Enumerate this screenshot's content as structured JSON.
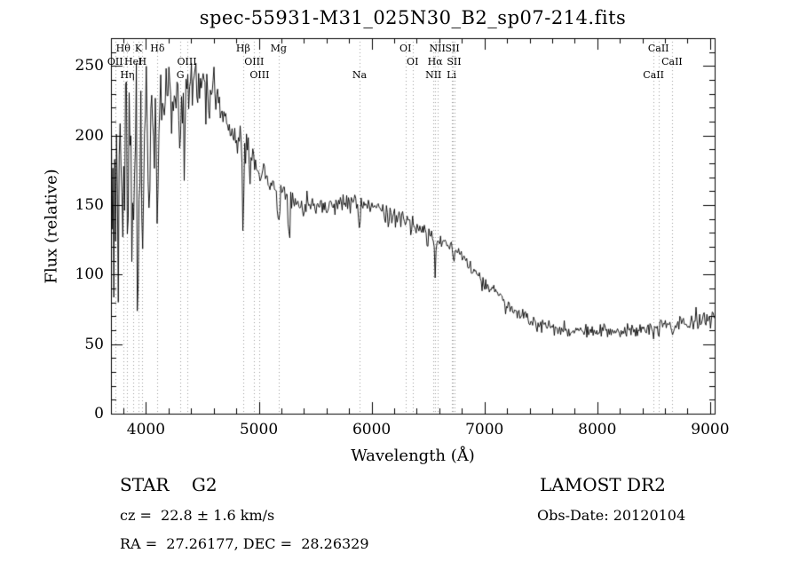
{
  "title": "spec-55931-M31_025N30_B2_sp07-214.fits",
  "footer": {
    "class_label": "STAR    G2",
    "survey": "LAMOST DR2",
    "cz": "cz =  22.8 ± 1.6 km/s",
    "obs_date": "Obs-Date: 20120104",
    "coords": "RA =  27.26177, DEC =  28.26329"
  },
  "chart_data": {
    "type": "line",
    "title": "spec-55931-M31_025N30_B2_sp07-214.fits",
    "xlabel": "Wavelength (Å)",
    "ylabel": "Flux (relative)",
    "xlim": [
      3690,
      9040
    ],
    "ylim": [
      0,
      270
    ],
    "xticks": [
      4000,
      5000,
      6000,
      7000,
      8000,
      9000
    ],
    "yticks": [
      0,
      50,
      100,
      150,
      200,
      250
    ],
    "x_minor_step": 200,
    "y_minor_step": 10,
    "grid": "vertical dotted lines at spectral features only",
    "legend": "none",
    "line_color": "#000000",
    "axis_color": "#000000",
    "grid_color": "#999999",
    "background": "#ffffff",
    "seed": 7,
    "sample_step": 8,
    "clamp": [
      50,
      252
    ],
    "blue_spikes": {
      "max_wavelength": 4150,
      "probability": 0.18,
      "min_depth": 25,
      "max_depth": 120
    },
    "continuum": [
      [
        3690,
        150
      ],
      [
        3710,
        178
      ],
      [
        3730,
        198
      ],
      [
        3760,
        212
      ],
      [
        3790,
        220
      ],
      [
        3820,
        214
      ],
      [
        3850,
        209
      ],
      [
        3880,
        206
      ],
      [
        3910,
        204
      ],
      [
        3935,
        198
      ],
      [
        3970,
        198
      ],
      [
        4000,
        214
      ],
      [
        4040,
        222
      ],
      [
        4080,
        222
      ],
      [
        4120,
        226
      ],
      [
        4160,
        230
      ],
      [
        4200,
        230
      ],
      [
        4250,
        228
      ],
      [
        4300,
        231
      ],
      [
        4350,
        230
      ],
      [
        4400,
        234
      ],
      [
        4450,
        237
      ],
      [
        4500,
        236
      ],
      [
        4550,
        232
      ],
      [
        4600,
        229
      ],
      [
        4650,
        224
      ],
      [
        4700,
        213
      ],
      [
        4750,
        206
      ],
      [
        4800,
        201
      ],
      [
        4850,
        196
      ],
      [
        4900,
        189
      ],
      [
        4950,
        183
      ],
      [
        5000,
        177
      ],
      [
        5050,
        170
      ],
      [
        5100,
        165
      ],
      [
        5160,
        161
      ],
      [
        5220,
        157
      ],
      [
        5280,
        153
      ],
      [
        5350,
        150
      ],
      [
        5450,
        150
      ],
      [
        5550,
        151
      ],
      [
        5650,
        150
      ],
      [
        5750,
        152
      ],
      [
        5850,
        153
      ],
      [
        5950,
        150
      ],
      [
        6050,
        147
      ],
      [
        6150,
        144
      ],
      [
        6250,
        141
      ],
      [
        6350,
        137
      ],
      [
        6450,
        132
      ],
      [
        6550,
        128
      ],
      [
        6650,
        123
      ],
      [
        6750,
        117
      ],
      [
        6850,
        109
      ],
      [
        6950,
        100
      ],
      [
        7050,
        91
      ],
      [
        7150,
        83
      ],
      [
        7250,
        75
      ],
      [
        7350,
        69
      ],
      [
        7450,
        65
      ],
      [
        7550,
        63
      ],
      [
        7650,
        61
      ],
      [
        7750,
        60
      ],
      [
        7850,
        60
      ],
      [
        7950,
        59
      ],
      [
        8050,
        60
      ],
      [
        8150,
        60
      ],
      [
        8250,
        60
      ],
      [
        8350,
        61
      ],
      [
        8450,
        62
      ],
      [
        8550,
        63
      ],
      [
        8650,
        64
      ],
      [
        8750,
        65
      ],
      [
        8850,
        66
      ],
      [
        8950,
        68
      ],
      [
        9040,
        70
      ]
    ],
    "noise_profile": [
      [
        3690,
        36
      ],
      [
        3800,
        33
      ],
      [
        3900,
        29
      ],
      [
        4000,
        21
      ],
      [
        4100,
        17
      ],
      [
        4200,
        13
      ],
      [
        4300,
        11
      ],
      [
        4450,
        9
      ],
      [
        4600,
        8
      ],
      [
        4800,
        6.5
      ],
      [
        5000,
        5.5
      ],
      [
        5300,
        4.5
      ],
      [
        5600,
        4
      ],
      [
        6000,
        3.5
      ],
      [
        6500,
        3
      ],
      [
        7000,
        2.8
      ],
      [
        7500,
        2.5
      ],
      [
        8000,
        2.5
      ],
      [
        8600,
        2.6
      ],
      [
        9040,
        3
      ]
    ],
    "absorption_lines": [
      [
        3727,
        35,
        4
      ],
      [
        3750,
        45,
        4
      ],
      [
        3798,
        60,
        5
      ],
      [
        3835,
        70,
        5
      ],
      [
        3889,
        65,
        5
      ],
      [
        3934,
        110,
        7
      ],
      [
        3969,
        100,
        7
      ],
      [
        4102,
        78,
        6
      ],
      [
        4227,
        28,
        4
      ],
      [
        4305,
        36,
        9
      ],
      [
        4340,
        58,
        5
      ],
      [
        4383,
        24,
        4
      ],
      [
        4455,
        20,
        4
      ],
      [
        4531,
        22,
        4
      ],
      [
        4668,
        20,
        5
      ],
      [
        4861,
        68,
        6
      ],
      [
        4921,
        14,
        4
      ],
      [
        5015,
        14,
        4
      ],
      [
        5175,
        22,
        9
      ],
      [
        5270,
        28,
        8
      ],
      [
        5406,
        10,
        5
      ],
      [
        5893,
        18,
        7
      ],
      [
        6122,
        8,
        4
      ],
      [
        6300,
        6,
        4
      ],
      [
        6495,
        9,
        5
      ],
      [
        6563,
        32,
        5
      ],
      [
        6717,
        5,
        4
      ],
      [
        7190,
        5,
        6
      ],
      [
        8498,
        8,
        5
      ],
      [
        8542,
        11,
        6
      ],
      [
        8662,
        9,
        6
      ]
    ],
    "spectral_lines": [
      {
        "wavelength": 3727,
        "label": "OII",
        "row": 2
      },
      {
        "wavelength": 3798,
        "label": "Hθ",
        "row": 1
      },
      {
        "wavelength": 3835,
        "label": "Hη",
        "row": 3
      },
      {
        "wavelength": 3889,
        "label": "HeI",
        "row": 2
      },
      {
        "wavelength": 3934,
        "label": "K",
        "row": 1
      },
      {
        "wavelength": 3968,
        "label": "H",
        "row": 2
      },
      {
        "wavelength": 4102,
        "label": "Hδ",
        "row": 1
      },
      {
        "wavelength": 4305,
        "label": "G",
        "row": 3
      },
      {
        "wavelength": 4363,
        "label": "OIII",
        "row": 2
      },
      {
        "wavelength": 4861,
        "label": "Hβ",
        "row": 1
      },
      {
        "wavelength": 4959,
        "label": "OIII",
        "row": 2
      },
      {
        "wavelength": 5007,
        "label": "OIII",
        "row": 3
      },
      {
        "wavelength": 5175,
        "label": "Mg",
        "row": 1
      },
      {
        "wavelength": 5893,
        "label": "Na",
        "row": 3
      },
      {
        "wavelength": 6300,
        "label": "OI",
        "row": 1
      },
      {
        "wavelength": 6363,
        "label": "OI",
        "row": 2
      },
      {
        "wavelength": 6548,
        "label": "NII",
        "row": 3
      },
      {
        "wavelength": 6563,
        "label": "Hα",
        "row": 2
      },
      {
        "wavelength": 6583,
        "label": "NII",
        "row": 1
      },
      {
        "wavelength": 6708,
        "label": "Li",
        "row": 3
      },
      {
        "wavelength": 6716,
        "label": "SII",
        "row": 1
      },
      {
        "wavelength": 6731,
        "label": "SII",
        "row": 2
      },
      {
        "wavelength": 8498,
        "label": "CaII",
        "row": 3
      },
      {
        "wavelength": 8542,
        "label": "CaII",
        "row": 1
      },
      {
        "wavelength": 8662,
        "label": "CaII",
        "row": 2
      }
    ]
  }
}
